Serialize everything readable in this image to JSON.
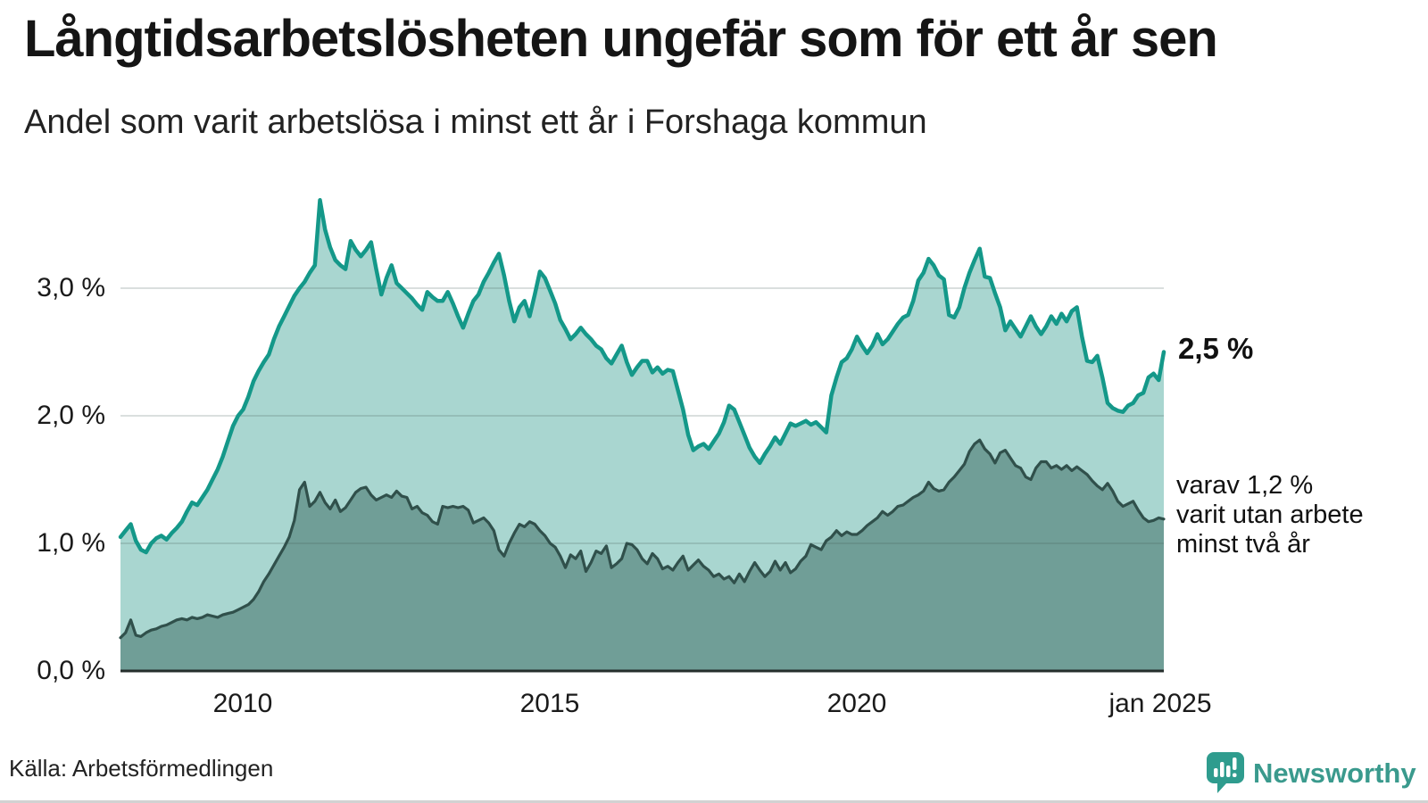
{
  "header": {
    "title": "Långtidsarbetslösheten ungefär som för ett år sen",
    "subtitle": "Andel som varit arbetslösa i minst ett år i Forshaga kommun"
  },
  "colors": {
    "line_total": "#149889",
    "fill_total": "#a9d6d0",
    "line_two_year": "#30504b",
    "fill_two_year": "#709e97",
    "gridline": "rgba(70,95,92,0.20)",
    "baseline": "#252e2c",
    "brand_teal": "#339a8c"
  },
  "chart_data": {
    "type": "area",
    "title": "Långtidsarbetslösheten ungefär som för ett år sen",
    "subtitle": "Andel som varit arbetslösa i minst ett år i Forshaga kommun",
    "xlabel": "",
    "ylabel": "",
    "x_start": "2008-01",
    "x_end": "2025-01",
    "frequency": "monthly",
    "ylim": [
      0,
      3.74
    ],
    "grid_values": [
      1,
      2,
      3
    ],
    "y_ticks": [
      "3,0 %",
      "2,0 %",
      "1,0 %",
      "0,0 %"
    ],
    "x_ticks": [
      "2010",
      "2015",
      "2020",
      "jan 2025"
    ],
    "legend_position": "right-annotations",
    "series": [
      {
        "name": "Andel arbetslösa minst ett år",
        "values": [
          1.05,
          1.1,
          1.15,
          1.02,
          0.95,
          0.93,
          1.0,
          1.04,
          1.06,
          1.03,
          1.08,
          1.12,
          1.17,
          1.25,
          1.32,
          1.3,
          1.36,
          1.42,
          1.5,
          1.58,
          1.68,
          1.8,
          1.92,
          2.0,
          2.05,
          2.15,
          2.27,
          2.35,
          2.42,
          2.48,
          2.6,
          2.7,
          2.78,
          2.86,
          2.94,
          3.0,
          3.05,
          3.12,
          3.18,
          3.69,
          3.46,
          3.32,
          3.22,
          3.18,
          3.15,
          3.37,
          3.3,
          3.25,
          3.3,
          3.36,
          3.15,
          2.95,
          3.08,
          3.18,
          3.04,
          3.0,
          2.96,
          2.92,
          2.87,
          2.83,
          2.97,
          2.93,
          2.9,
          2.9,
          2.97,
          2.88,
          2.78,
          2.69,
          2.8,
          2.9,
          2.95,
          3.05,
          3.12,
          3.2,
          3.27,
          3.1,
          2.9,
          2.74,
          2.85,
          2.9,
          2.78,
          2.95,
          3.13,
          3.08,
          2.98,
          2.88,
          2.75,
          2.68,
          2.6,
          2.64,
          2.69,
          2.64,
          2.6,
          2.55,
          2.52,
          2.45,
          2.41,
          2.48,
          2.55,
          2.42,
          2.32,
          2.38,
          2.43,
          2.43,
          2.34,
          2.38,
          2.33,
          2.36,
          2.35,
          2.2,
          2.05,
          1.85,
          1.73,
          1.76,
          1.78,
          1.74,
          1.8,
          1.86,
          1.95,
          2.08,
          2.05,
          1.95,
          1.85,
          1.75,
          1.68,
          1.63,
          1.7,
          1.76,
          1.83,
          1.78,
          1.86,
          1.94,
          1.92,
          1.94,
          1.96,
          1.93,
          1.95,
          1.91,
          1.87,
          2.16,
          2.3,
          2.42,
          2.45,
          2.52,
          2.62,
          2.55,
          2.49,
          2.55,
          2.64,
          2.56,
          2.6,
          2.66,
          2.72,
          2.77,
          2.79,
          2.9,
          3.06,
          3.12,
          3.23,
          3.18,
          3.1,
          3.07,
          2.79,
          2.77,
          2.85,
          3.0,
          3.12,
          3.22,
          3.31,
          3.09,
          3.08,
          2.96,
          2.85,
          2.67,
          2.74,
          2.68,
          2.62,
          2.7,
          2.78,
          2.7,
          2.64,
          2.7,
          2.78,
          2.72,
          2.8,
          2.74,
          2.82,
          2.85,
          2.62,
          2.43,
          2.42,
          2.47,
          2.3,
          2.1,
          2.06,
          2.04,
          2.03,
          2.08,
          2.1,
          2.16,
          2.18,
          2.3,
          2.33,
          2.28,
          2.5
        ]
      },
      {
        "name": "Andel arbetslösa minst två år",
        "values": [
          0.26,
          0.3,
          0.4,
          0.28,
          0.27,
          0.3,
          0.32,
          0.33,
          0.35,
          0.36,
          0.38,
          0.4,
          0.41,
          0.4,
          0.42,
          0.41,
          0.42,
          0.44,
          0.43,
          0.42,
          0.44,
          0.45,
          0.46,
          0.48,
          0.5,
          0.52,
          0.56,
          0.62,
          0.7,
          0.76,
          0.83,
          0.9,
          0.97,
          1.05,
          1.18,
          1.42,
          1.48,
          1.29,
          1.33,
          1.4,
          1.32,
          1.27,
          1.34,
          1.25,
          1.28,
          1.34,
          1.4,
          1.43,
          1.44,
          1.38,
          1.34,
          1.36,
          1.38,
          1.36,
          1.41,
          1.37,
          1.36,
          1.27,
          1.29,
          1.24,
          1.22,
          1.17,
          1.15,
          1.29,
          1.28,
          1.29,
          1.28,
          1.29,
          1.26,
          1.16,
          1.18,
          1.2,
          1.16,
          1.1,
          0.95,
          0.9,
          1.0,
          1.08,
          1.15,
          1.13,
          1.17,
          1.15,
          1.1,
          1.06,
          1.0,
          0.97,
          0.9,
          0.81,
          0.91,
          0.88,
          0.94,
          0.78,
          0.85,
          0.94,
          0.92,
          0.98,
          0.81,
          0.84,
          0.88,
          1.0,
          0.99,
          0.95,
          0.88,
          0.84,
          0.92,
          0.88,
          0.8,
          0.82,
          0.79,
          0.85,
          0.9,
          0.79,
          0.83,
          0.87,
          0.82,
          0.79,
          0.74,
          0.76,
          0.72,
          0.74,
          0.69,
          0.76,
          0.7,
          0.78,
          0.85,
          0.79,
          0.74,
          0.78,
          0.86,
          0.79,
          0.85,
          0.77,
          0.8,
          0.86,
          0.9,
          0.99,
          0.97,
          0.95,
          1.02,
          1.05,
          1.1,
          1.06,
          1.09,
          1.07,
          1.07,
          1.1,
          1.14,
          1.17,
          1.2,
          1.25,
          1.22,
          1.25,
          1.29,
          1.3,
          1.33,
          1.36,
          1.38,
          1.41,
          1.48,
          1.43,
          1.41,
          1.42,
          1.48,
          1.52,
          1.57,
          1.62,
          1.72,
          1.78,
          1.81,
          1.74,
          1.7,
          1.63,
          1.71,
          1.73,
          1.67,
          1.61,
          1.59,
          1.52,
          1.5,
          1.59,
          1.64,
          1.64,
          1.59,
          1.61,
          1.58,
          1.61,
          1.57,
          1.6,
          1.57,
          1.54,
          1.49,
          1.45,
          1.42,
          1.47,
          1.41,
          1.33,
          1.29,
          1.31,
          1.33,
          1.26,
          1.2,
          1.17,
          1.18,
          1.2,
          1.19
        ]
      }
    ],
    "annotations": {
      "total_label": "2,5 %",
      "detail_lines": [
        "varav 1,2 %",
        "varit utan arbete",
        "minst två år"
      ]
    }
  },
  "footer": {
    "source": "Källa: Arbetsförmedlingen",
    "brand": "Newsworthy"
  }
}
